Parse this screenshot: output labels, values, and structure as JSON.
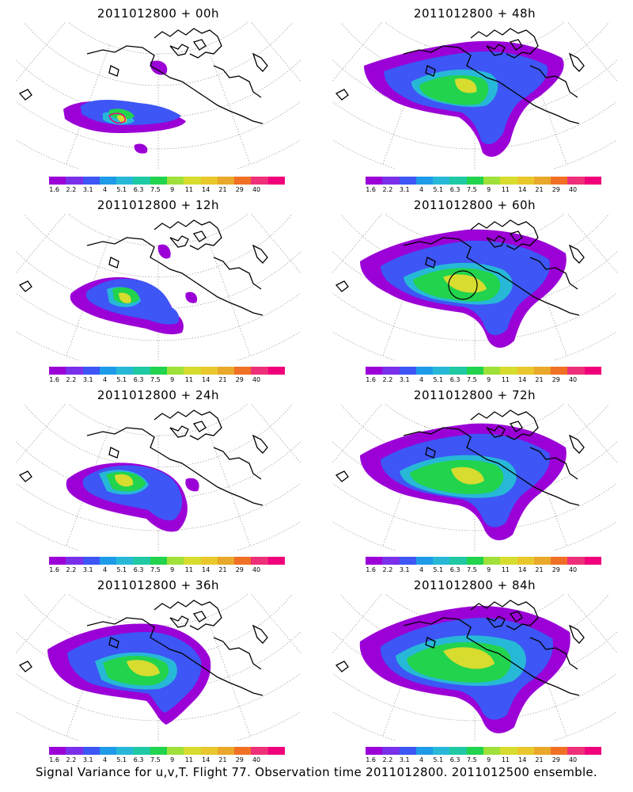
{
  "panels": [
    {
      "title": "2011012800 + 00h"
    },
    {
      "title": "2011012800 + 48h"
    },
    {
      "title": "2011012800 + 12h"
    },
    {
      "title": "2011012800 + 60h"
    },
    {
      "title": "2011012800 + 24h"
    },
    {
      "title": "2011012800 + 72h"
    },
    {
      "title": "2011012800 + 36h"
    },
    {
      "title": "2011012800 + 84h"
    }
  ],
  "colorbar": {
    "colors": [
      "#9b00d6",
      "#7a2fe8",
      "#3d56f5",
      "#1e9be8",
      "#27b8d8",
      "#1fc9a4",
      "#22d34d",
      "#9fe03a",
      "#d7dc2f",
      "#e8c82c",
      "#e9a82a",
      "#f07025",
      "#ee2f7a",
      "#f0007a"
    ],
    "labels": [
      "1.6",
      "2.2",
      "3.1",
      "4",
      "5.1",
      "6.3",
      "7.5",
      "9",
      "11",
      "14",
      "21",
      "29",
      "40"
    ]
  },
  "footer": "Signal Variance for u,v,T.  Flight 77.  Observation time 2011012800.  2011012500 ensemble."
}
